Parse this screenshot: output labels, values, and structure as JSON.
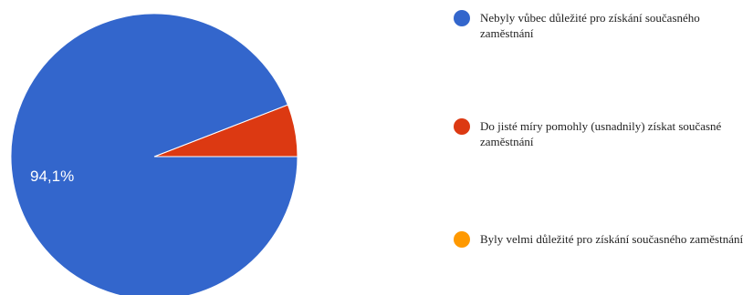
{
  "chart_data": {
    "type": "pie",
    "categories": [
      "Nebyly vůbec důležité pro získání současného zaměstnání",
      "Do jisté míry pomohly (usnadnily) získat současné zaměstnání",
      "Byly velmi důležité pro získání současného zaměstnání"
    ],
    "values": [
      94.1,
      5.9,
      0
    ],
    "colors": [
      "#3366cc",
      "#dc3912",
      "#ff9900"
    ],
    "data_labels": [
      "94,1%",
      "",
      ""
    ],
    "title": "",
    "legend_position": "right"
  },
  "legend": {
    "items": [
      {
        "label": " Nebyly vůbec důležité pro získání současného zaměstnání",
        "color": "#3366cc"
      },
      {
        "label": "Do jisté míry pomohly (usnadnily) získat současné zaměstnání",
        "color": "#dc3912"
      },
      {
        "label": "Byly velmi důležité pro získání současného zaměstnání",
        "color": "#ff9900"
      }
    ]
  }
}
